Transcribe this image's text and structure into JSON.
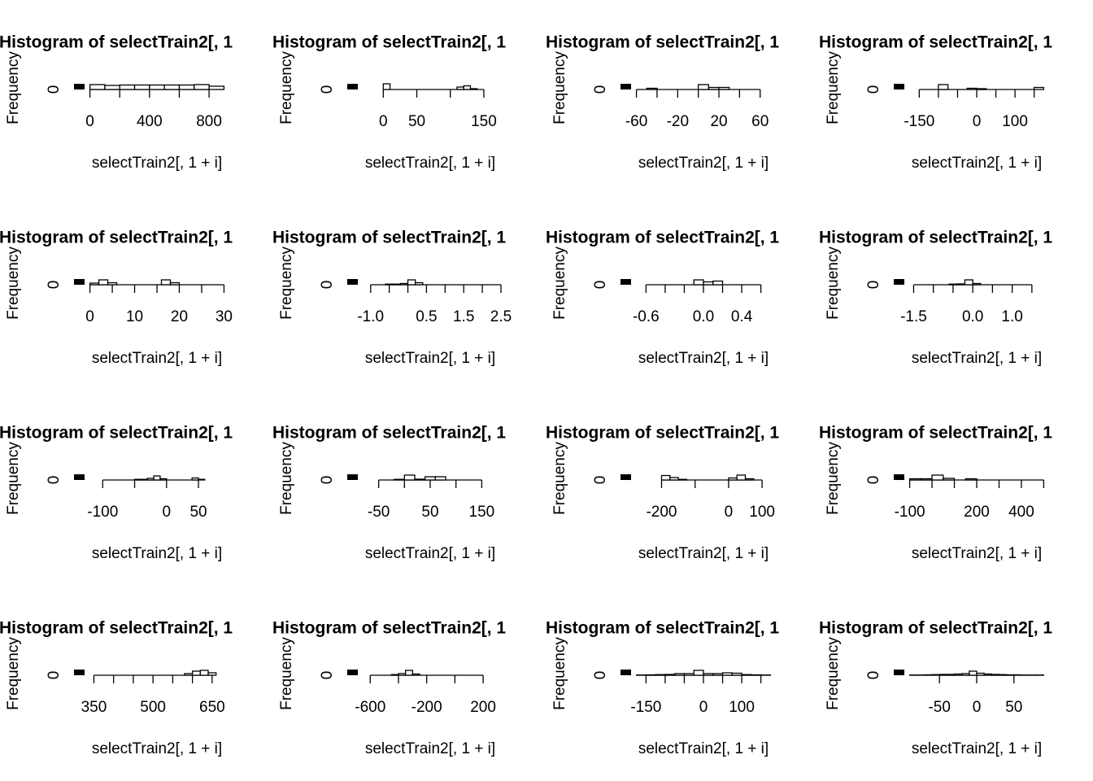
{
  "chart_data": [
    {
      "type": "histogram",
      "title": "Histogram of selectTrain2[, 1",
      "xlabel": "selectTrain2[, 1 + i]",
      "ylabel": "Frequency",
      "color": "#ffffff",
      "edgecolor": "#000000",
      "bins": [
        0,
        100,
        200,
        300,
        400,
        500,
        600,
        700,
        800,
        900
      ],
      "values": [
        60,
        50,
        55,
        55,
        55,
        55,
        55,
        60,
        40
      ],
      "xlim": [
        -36,
        936
      ],
      "ylim": [
        0,
        100
      ],
      "yticks": [
        0
      ],
      "xticks": [
        0,
        {
          "value": 200,
          "label": null
        },
        400,
        {
          "value": 600,
          "label": null
        },
        800
      ]
    },
    {
      "type": "histogram",
      "title": "Histogram of selectTrain2[, 1",
      "xlabel": "selectTrain2[, 1 + i]",
      "ylabel": "Frequency",
      "color": "#ffffff",
      "edgecolor": "#000000",
      "bins": [
        -30,
        -20,
        -10,
        0,
        10,
        20,
        30,
        40,
        50,
        60,
        70,
        80,
        90,
        100,
        110,
        120,
        130,
        140,
        150,
        160,
        170
      ],
      "values": [
        0,
        0,
        0,
        70,
        0,
        0,
        0,
        0,
        0,
        0,
        0,
        0,
        0,
        0,
        30,
        45,
        10,
        0,
        0,
        0
      ],
      "xlim": [
        -38,
        178
      ],
      "ylim": [
        0,
        100
      ],
      "yticks": [
        0
      ],
      "xticks": [
        0,
        50,
        {
          "value": 100,
          "label": null
        },
        150
      ]
    },
    {
      "type": "histogram",
      "title": "Histogram of selectTrain2[, 1",
      "xlabel": "selectTrain2[, 1 + i]",
      "ylabel": "Frequency",
      "color": "#ffffff",
      "edgecolor": "#000000",
      "bins": [
        -60,
        -50,
        -40,
        -30,
        -20,
        -10,
        0,
        10,
        20,
        30,
        40,
        50,
        60,
        70
      ],
      "values": [
        0,
        15,
        0,
        0,
        0,
        0,
        60,
        25,
        25,
        0,
        0,
        0,
        0
      ],
      "xlim": [
        -65.2,
        75.2
      ],
      "ylim": [
        0,
        100
      ],
      "yticks": [
        0
      ],
      "xticks": [
        -60,
        {
          "value": -40,
          "label": null
        },
        -20,
        {
          "value": 0,
          "label": null
        },
        20,
        {
          "value": 40,
          "label": null
        },
        60
      ]
    },
    {
      "type": "histogram",
      "title": "Histogram of selectTrain2[, 1",
      "xlabel": "selectTrain2[, 1 + i]",
      "ylabel": "Frequency",
      "color": "#ffffff",
      "edgecolor": "#000000",
      "bins": [
        -175,
        -150,
        -125,
        -100,
        -75,
        -50,
        -25,
        0,
        25,
        50,
        75,
        100,
        125,
        150,
        175
      ],
      "values": [
        0,
        0,
        0,
        60,
        0,
        0,
        15,
        10,
        0,
        0,
        0,
        0,
        0,
        25
      ],
      "xlim": [
        -189,
        189
      ],
      "ylim": [
        0,
        100
      ],
      "yticks": [
        0
      ],
      "xticks": [
        -150,
        {
          "value": -100,
          "label": null
        },
        {
          "value": -50,
          "label": null
        },
        0,
        {
          "value": 50,
          "label": null
        },
        100,
        {
          "value": 150,
          "label": null
        }
      ]
    },
    {
      "type": "histogram",
      "title": "Histogram of selectTrain2[, 1",
      "xlabel": "selectTrain2[, 1 + i]",
      "ylabel": "Frequency",
      "color": "#ffffff",
      "edgecolor": "#000000",
      "bins": [
        0,
        2,
        4,
        6,
        8,
        10,
        12,
        14,
        16,
        18,
        20,
        22,
        24,
        26,
        28,
        30
      ],
      "values": [
        20,
        60,
        25,
        0,
        0,
        0,
        0,
        0,
        60,
        25,
        0,
        0,
        0,
        0,
        0
      ],
      "xlim": [
        -1.2,
        31.2
      ],
      "ylim": [
        0,
        100
      ],
      "yticks": [
        0
      ],
      "xticks": [
        0,
        {
          "value": 5,
          "label": null
        },
        10,
        {
          "value": 15,
          "label": null
        },
        20,
        {
          "value": 25,
          "label": null
        },
        30
      ]
    },
    {
      "type": "histogram",
      "title": "Histogram of selectTrain2[, 1",
      "xlabel": "selectTrain2[, 1 + i]",
      "ylabel": "Frequency",
      "color": "#ffffff",
      "edgecolor": "#000000",
      "bins": [
        -1.2,
        -1,
        -0.8,
        -0.6,
        -0.4,
        -0.2,
        0,
        0.2,
        0.4,
        0.6,
        0.8,
        1,
        1.2,
        1.4,
        1.6,
        1.8,
        2,
        2.2,
        2.4
      ],
      "values": [
        0,
        0,
        0,
        8,
        8,
        15,
        60,
        25,
        0,
        0,
        0,
        0,
        0,
        0,
        0,
        0,
        0,
        0
      ],
      "xlim": [
        -1.344,
        2.544
      ],
      "ylim": [
        0,
        100
      ],
      "yticks": [
        0
      ],
      "xticks": [
        {
          "value": -1,
          "label": "-1.0"
        },
        {
          "value": -0.5,
          "label": null
        },
        {
          "value": 0,
          "label": null
        },
        0.5,
        {
          "value": 1,
          "label": null
        },
        1.5,
        {
          "value": 2,
          "label": null
        },
        2.5
      ]
    },
    {
      "type": "histogram",
      "title": "Histogram of selectTrain2[, 1",
      "xlabel": "selectTrain2[, 1 + i]",
      "ylabel": "Frequency",
      "color": "#ffffff",
      "edgecolor": "#000000",
      "bins": [
        -0.7,
        -0.6,
        -0.5,
        -0.4,
        -0.3,
        -0.2,
        -0.1,
        0,
        0.1,
        0.2,
        0.3,
        0.4,
        0.5,
        0.6,
        0.7
      ],
      "values": [
        0,
        0,
        0,
        0,
        0,
        0,
        60,
        35,
        45,
        0,
        0,
        0,
        0,
        0
      ],
      "xlim": [
        -0.756,
        0.756
      ],
      "ylim": [
        0,
        100
      ],
      "yticks": [
        0
      ],
      "xticks": [
        -0.6,
        {
          "value": -0.4,
          "label": null
        },
        {
          "value": -0.2,
          "label": null
        },
        {
          "value": 0,
          "label": "0.0"
        },
        {
          "value": 0.2,
          "label": null
        },
        0.4,
        {
          "value": 0.6,
          "label": null
        }
      ]
    },
    {
      "type": "histogram",
      "title": "Histogram of selectTrain2[, 1",
      "xlabel": "selectTrain2[, 1 + i]",
      "ylabel": "Frequency",
      "color": "#ffffff",
      "edgecolor": "#000000",
      "bins": [
        -1.6,
        -1.4,
        -1.2,
        -1,
        -0.8,
        -0.6,
        -0.4,
        -0.2,
        0,
        0.2,
        0.4,
        0.6,
        0.8,
        1,
        1.2,
        1.4,
        1.6,
        1.8
      ],
      "values": [
        0,
        0,
        0,
        0,
        0,
        8,
        10,
        60,
        15,
        0,
        0,
        0,
        0,
        0,
        0,
        0,
        0
      ],
      "xlim": [
        -1.736,
        1.936
      ],
      "ylim": [
        0,
        100
      ],
      "yticks": [
        0
      ],
      "xticks": [
        -1.5,
        {
          "value": -1,
          "label": null
        },
        {
          "value": -0.5,
          "label": null
        },
        {
          "value": 0,
          "label": "0.0"
        },
        {
          "value": 0.5,
          "label": null
        },
        {
          "value": 1,
          "label": "1.0"
        },
        {
          "value": 1.5,
          "label": null
        }
      ]
    },
    {
      "type": "histogram",
      "title": "Histogram of selectTrain2[, 1",
      "xlabel": "selectTrain2[, 1 + i]",
      "ylabel": "Frequency",
      "color": "#ffffff",
      "edgecolor": "#000000",
      "bins": [
        -120,
        -110,
        -100,
        -90,
        -80,
        -70,
        -60,
        -50,
        -40,
        -30,
        -20,
        -10,
        0,
        10,
        20,
        30,
        40,
        50,
        60,
        70,
        80,
        90
      ],
      "values": [
        0,
        0,
        0,
        0,
        0,
        0,
        0,
        8,
        8,
        20,
        50,
        15,
        0,
        0,
        0,
        0,
        25,
        8,
        0,
        0,
        0
      ],
      "xlim": [
        -128.4,
        98.4
      ],
      "ylim": [
        0,
        100
      ],
      "yticks": [
        0
      ],
      "xticks": [
        -100,
        {
          "value": -50,
          "label": null
        },
        0,
        50
      ]
    },
    {
      "type": "histogram",
      "title": "Histogram of selectTrain2[, 1",
      "xlabel": "selectTrain2[, 1 + i]",
      "ylabel": "Frequency",
      "color": "#ffffff",
      "edgecolor": "#000000",
      "bins": [
        -80,
        -60,
        -40,
        -20,
        0,
        20,
        40,
        60,
        80,
        100,
        120,
        140,
        160,
        180
      ],
      "values": [
        0,
        0,
        0,
        8,
        60,
        10,
        40,
        40,
        0,
        0,
        0,
        0,
        0
      ],
      "xlim": [
        -90.4,
        190.4
      ],
      "ylim": [
        0,
        100
      ],
      "yticks": [
        0
      ],
      "xticks": [
        -50,
        {
          "value": 0,
          "label": null
        },
        50,
        {
          "value": 100,
          "label": null
        },
        150
      ]
    },
    {
      "type": "histogram",
      "title": "Histogram of selectTrain2[, 1",
      "xlabel": "selectTrain2[, 1 + i]",
      "ylabel": "Frequency",
      "color": "#ffffff",
      "edgecolor": "#000000",
      "bins": [
        -275,
        -250,
        -225,
        -200,
        -175,
        -150,
        -125,
        -100,
        -75,
        -50,
        -25,
        0,
        25,
        50,
        75,
        100,
        125
      ],
      "values": [
        0,
        0,
        0,
        55,
        30,
        8,
        0,
        0,
        0,
        0,
        0,
        25,
        60,
        15,
        0,
        0
      ],
      "xlim": [
        -291,
        141
      ],
      "ylim": [
        0,
        100
      ],
      "yticks": [
        0
      ],
      "xticks": [
        -200,
        {
          "value": -100,
          "label": null
        },
        0,
        100
      ]
    },
    {
      "type": "histogram",
      "title": "Histogram of selectTrain2[, 1",
      "xlabel": "selectTrain2[, 1 + i]",
      "ylabel": "Frequency",
      "color": "#ffffff",
      "edgecolor": "#000000",
      "bins": [
        -100,
        -50,
        0,
        50,
        100,
        150,
        200,
        250,
        300,
        350,
        400,
        450,
        500
      ],
      "values": [
        15,
        15,
        60,
        20,
        0,
        15,
        0,
        0,
        0,
        0,
        0,
        0
      ],
      "xlim": [
        -124,
        524
      ],
      "ylim": [
        0,
        100
      ],
      "yticks": [
        0
      ],
      "xticks": [
        -100,
        {
          "value": 0,
          "label": null
        },
        {
          "value": 100,
          "label": null
        },
        200,
        {
          "value": 300,
          "label": null
        },
        400,
        {
          "value": 500,
          "label": null
        }
      ]
    },
    {
      "type": "histogram",
      "title": "Histogram of selectTrain2[, 1",
      "xlabel": "selectTrain2[, 1 + i]",
      "ylabel": "Frequency",
      "color": "#ffffff",
      "edgecolor": "#000000",
      "bins": [
        340,
        360,
        380,
        400,
        420,
        440,
        460,
        480,
        500,
        520,
        540,
        560,
        580,
        600,
        620,
        640,
        660,
        680
      ],
      "values": [
        0,
        0,
        0,
        0,
        0,
        0,
        0,
        0,
        0,
        0,
        0,
        0,
        20,
        50,
        60,
        30,
        0
      ],
      "xlim": [
        326.4,
        693.6
      ],
      "ylim": [
        0,
        100
      ],
      "yticks": [
        0
      ],
      "xticks": [
        350,
        {
          "value": 400,
          "label": null
        },
        {
          "value": 450,
          "label": null
        },
        500,
        {
          "value": 550,
          "label": null
        },
        {
          "value": 600,
          "label": null
        },
        650
      ]
    },
    {
      "type": "histogram",
      "title": "Histogram of selectTrain2[, 1",
      "xlabel": "selectTrain2[, 1 + i]",
      "ylabel": "Frequency",
      "color": "#ffffff",
      "edgecolor": "#000000",
      "bins": [
        -650,
        -600,
        -550,
        -500,
        -450,
        -400,
        -350,
        -300,
        -250,
        -200,
        -150,
        -100,
        -50,
        0,
        50,
        100,
        150,
        200,
        250,
        300
      ],
      "values": [
        0,
        0,
        0,
        0,
        8,
        20,
        60,
        15,
        0,
        0,
        0,
        0,
        0,
        0,
        0,
        0,
        0,
        0,
        0
      ],
      "xlim": [
        -688,
        338
      ],
      "ylim": [
        0,
        100
      ],
      "yticks": [
        0
      ],
      "xticks": [
        -600,
        {
          "value": -400,
          "label": null
        },
        -200,
        {
          "value": 0,
          "label": null
        },
        200
      ]
    },
    {
      "type": "histogram",
      "title": "Histogram of selectTrain2[, 1",
      "xlabel": "selectTrain2[, 1 + i]",
      "ylabel": "Frequency",
      "color": "#ffffff",
      "edgecolor": "#000000",
      "bins": [
        -175,
        -150,
        -125,
        -100,
        -75,
        -50,
        -25,
        0,
        25,
        50,
        75,
        100,
        125,
        150,
        175
      ],
      "values": [
        3,
        5,
        8,
        10,
        20,
        20,
        60,
        20,
        20,
        30,
        25,
        8,
        5,
        3
      ],
      "xlim": [
        -189,
        189
      ],
      "ylim": [
        0,
        100
      ],
      "yticks": [
        0
      ],
      "xticks": [
        -150,
        {
          "value": -100,
          "label": null
        },
        {
          "value": -50,
          "label": null
        },
        0,
        {
          "value": 50,
          "label": null
        },
        100,
        {
          "value": 150,
          "label": null
        }
      ]
    },
    {
      "type": "histogram",
      "title": "Histogram of selectTrain2[, 1",
      "xlabel": "selectTrain2[, 1 + i]",
      "ylabel": "Frequency",
      "color": "#ffffff",
      "edgecolor": "#000000",
      "bins": [
        -90,
        -80,
        -70,
        -60,
        -50,
        -40,
        -30,
        -20,
        -10,
        0,
        10,
        20,
        30,
        40,
        50,
        60,
        70,
        80,
        90
      ],
      "values": [
        3,
        3,
        5,
        8,
        10,
        10,
        15,
        20,
        50,
        25,
        15,
        10,
        8,
        5,
        5,
        3,
        3,
        3
      ],
      "xlim": [
        -97.2,
        97.2
      ],
      "ylim": [
        0,
        100
      ],
      "yticks": [
        0
      ],
      "xticks": [
        -50,
        0,
        50
      ]
    }
  ]
}
